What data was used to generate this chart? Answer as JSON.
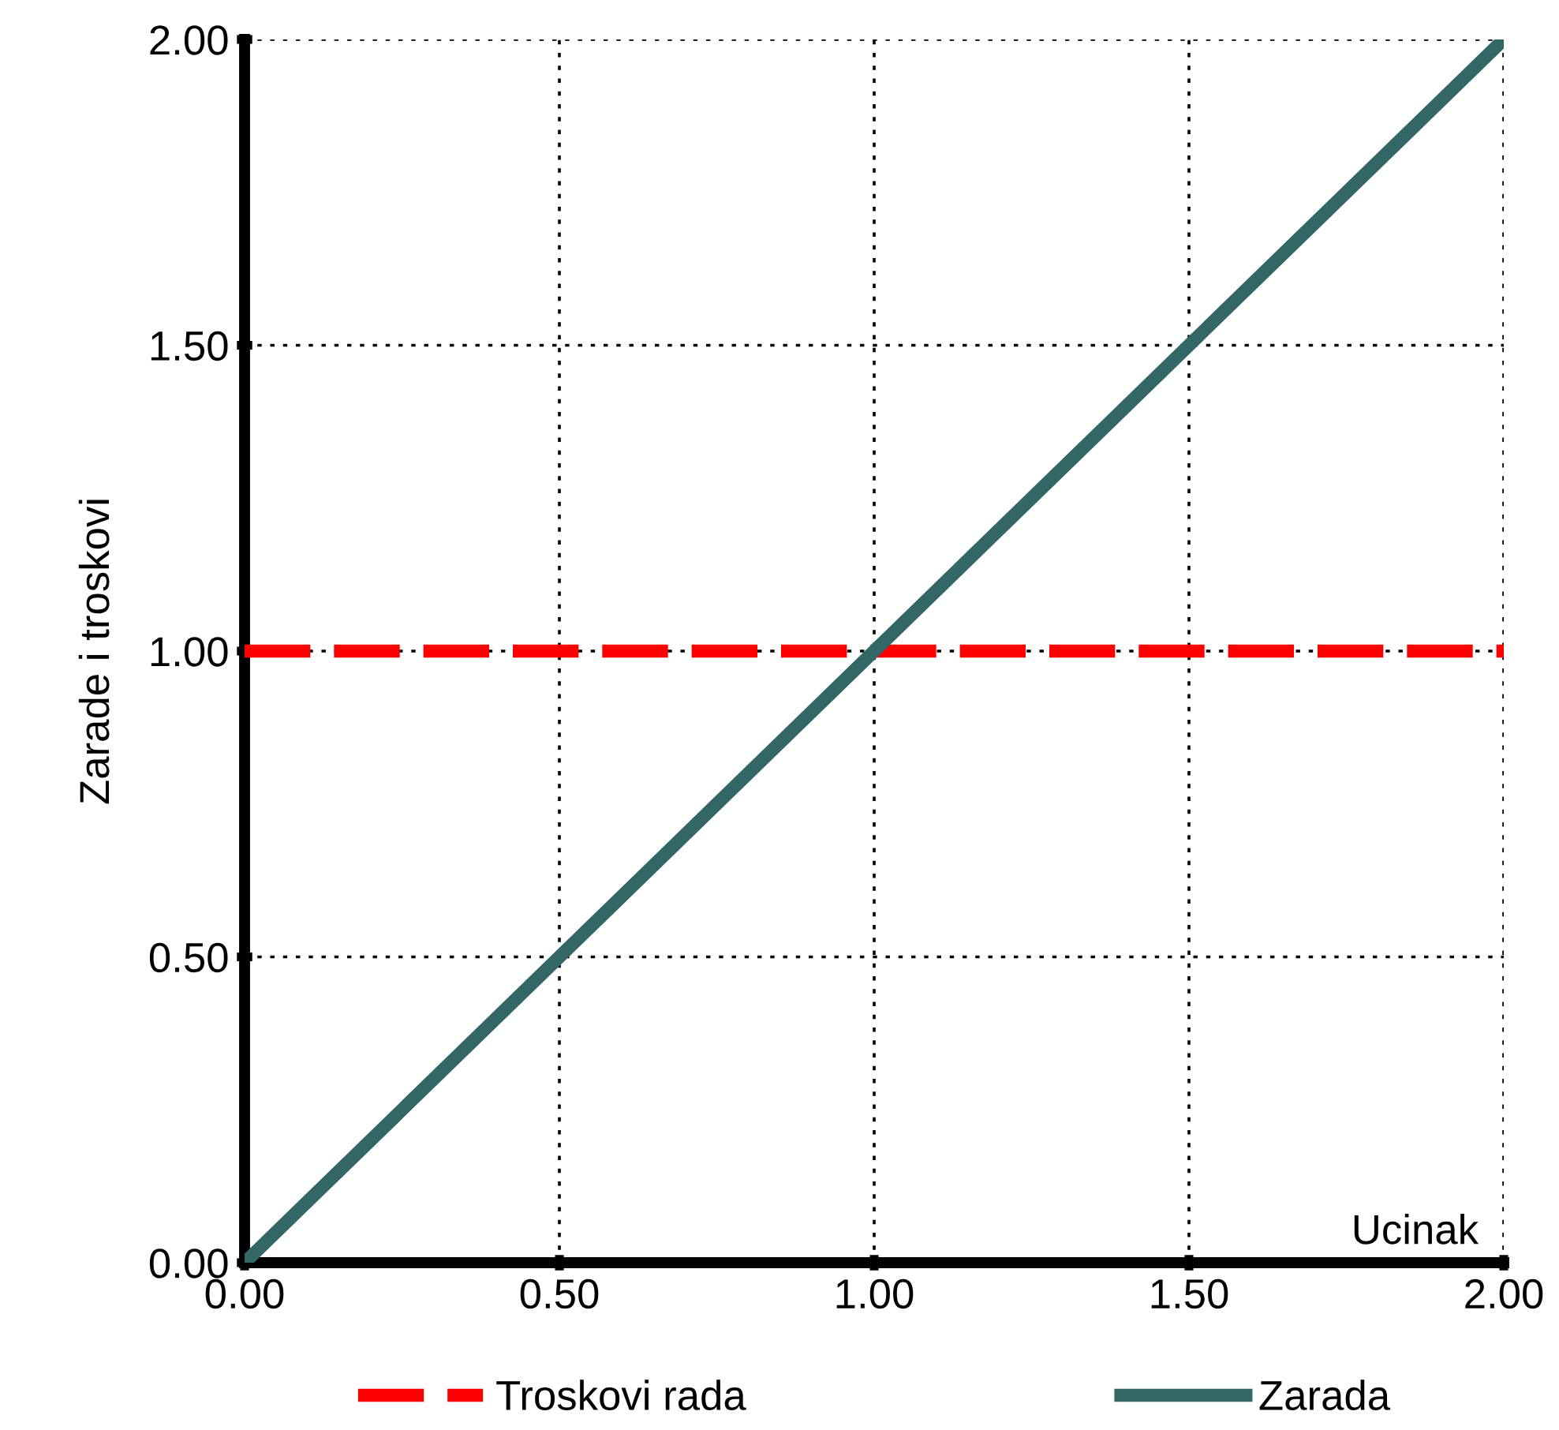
{
  "chart_data": {
    "type": "line",
    "xlabel": "Ucinak",
    "ylabel": "Zarade i troskovi",
    "x": [
      0,
      0.5,
      0.8,
      1,
      1.5,
      2
    ],
    "series": [
      {
        "name": "Troskovi rada",
        "color": "#ff0000",
        "line_style": "dashed",
        "values": [
          1,
          1,
          1,
          1,
          1,
          1
        ]
      },
      {
        "name": "Zarada",
        "color": "#336666",
        "line_style": "solid",
        "values": [
          0,
          0.5,
          0.8,
          1,
          1.5,
          2
        ]
      }
    ],
    "xlim": [
      0,
      2
    ],
    "ylim": [
      0,
      2
    ],
    "xticks": [
      {
        "value": 0,
        "label": "0.00"
      },
      {
        "value": 0.5,
        "label": "0.50"
      },
      {
        "value": 1,
        "label": "1.00"
      },
      {
        "value": 1.5,
        "label": "1.50"
      },
      {
        "value": 2,
        "label": "2.00"
      }
    ],
    "yticks": [
      {
        "value": 0,
        "label": "0.00"
      },
      {
        "value": 0.5,
        "label": "0.50"
      },
      {
        "value": 1,
        "label": "1.00"
      },
      {
        "value": 1.5,
        "label": "1.50"
      },
      {
        "value": 2,
        "label": "2.00"
      }
    ],
    "grid": true,
    "legend": "bottom",
    "marker": "none"
  }
}
